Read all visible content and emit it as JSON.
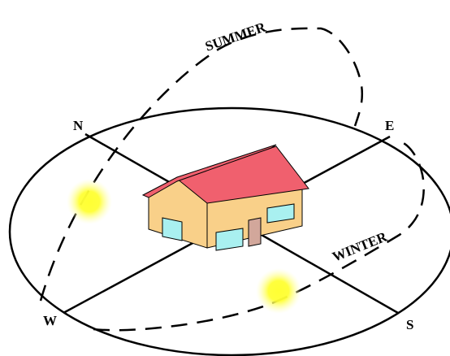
{
  "directions": {
    "north": "N",
    "east": "E",
    "south": "S",
    "west": "W"
  },
  "sun_paths": {
    "summer": "SUMMER",
    "winter": "WINTER"
  },
  "colors": {
    "outline": "#000000",
    "roof": "#f0606e",
    "wall": "#f9d089",
    "window": "#a9f0f0",
    "door": "#d2a79b",
    "sun_core": "#ffff33",
    "sun_glow": "#ffff99"
  }
}
